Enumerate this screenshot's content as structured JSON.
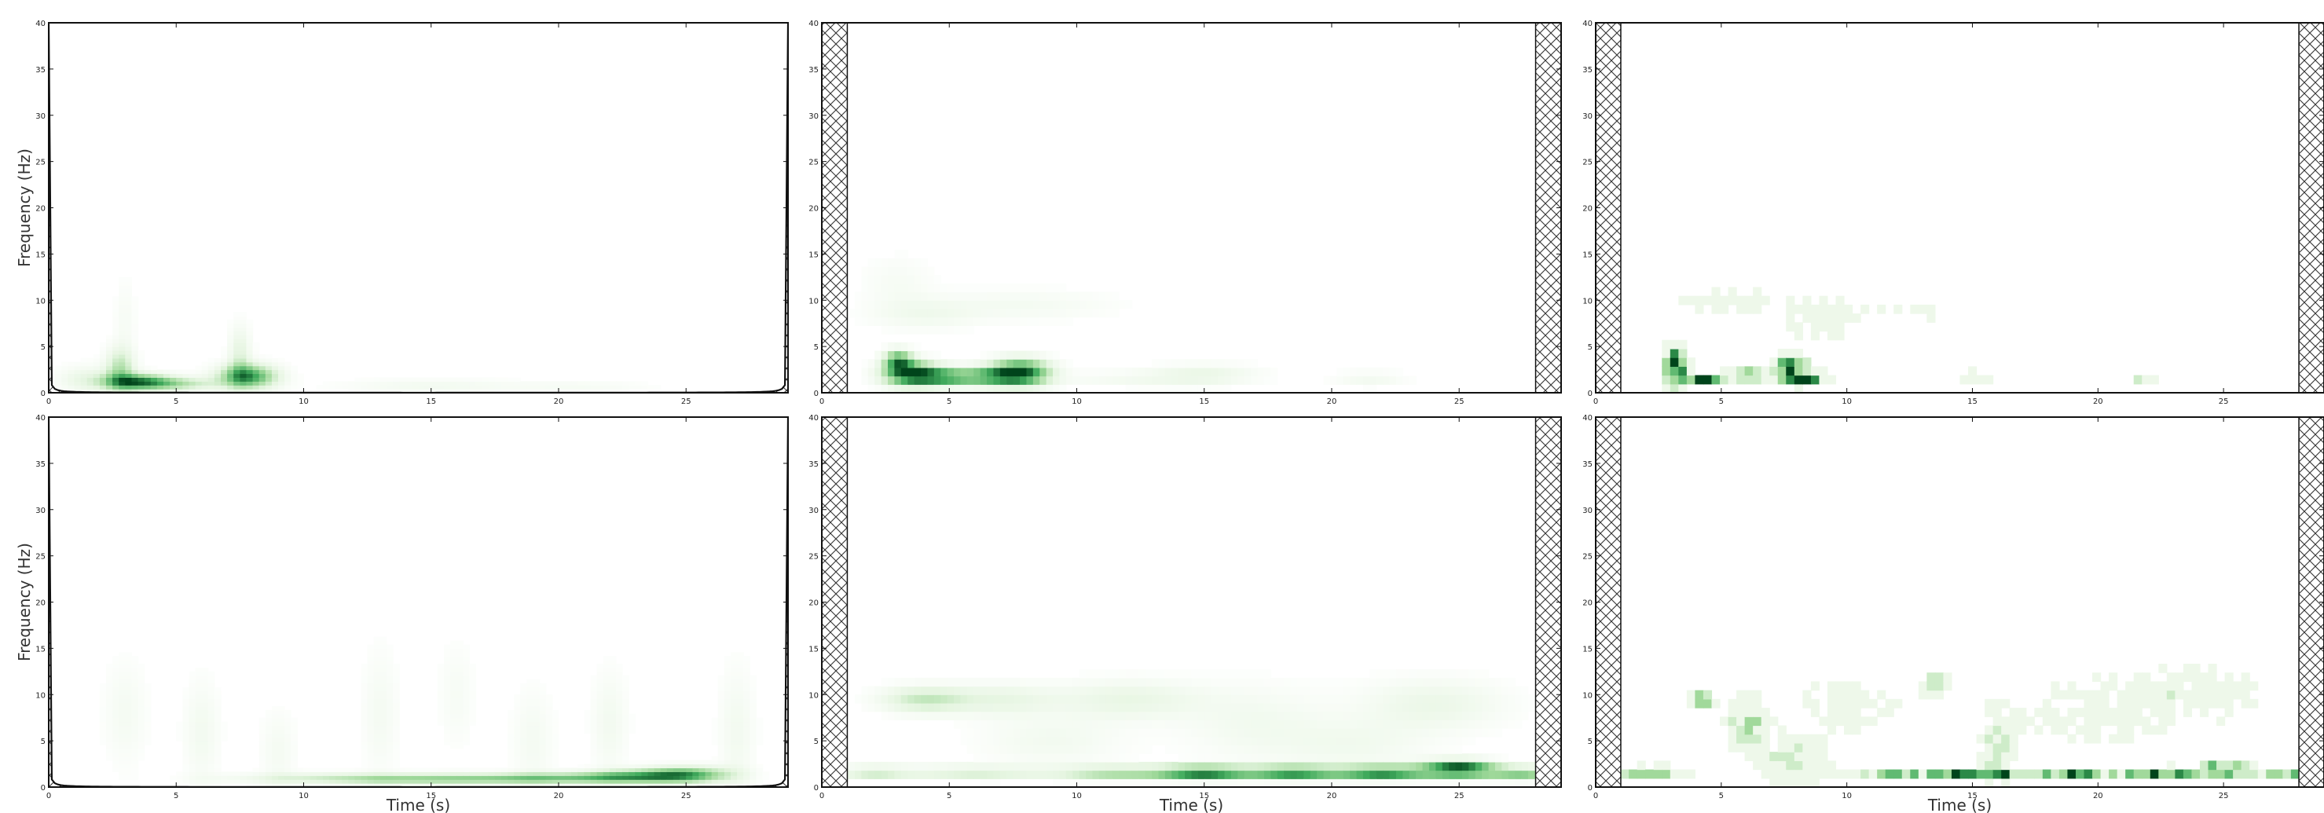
{
  "figure": {
    "colormap": [
      "#ffffff",
      "#e5f5e0",
      "#a1d99b",
      "#41ab5d",
      "#00441b"
    ],
    "hatch_color": "#333333",
    "x_tick_values": [
      0,
      5,
      10,
      15,
      20,
      25
    ],
    "y_tick_values": [
      0,
      5,
      10,
      15,
      20,
      25,
      30,
      35,
      40
    ],
    "xlim": [
      0,
      29
    ],
    "ylim": [
      0,
      40
    ]
  },
  "chart_data": [
    {
      "type": "heatmap",
      "method": "cwt",
      "row": 0,
      "col": 0,
      "ylabel": "Frequency (Hz)",
      "xlabel": "",
      "cone_of_influence": true,
      "edge_hatch_s": 0,
      "blobs": [
        [
          3.5,
          1.2,
          0.9,
          0.6,
          0.85
        ],
        [
          2.8,
          2.6,
          0.4,
          1.6,
          0.4
        ],
        [
          5.2,
          1.0,
          1.0,
          0.5,
          0.35
        ],
        [
          7.8,
          1.8,
          0.8,
          0.9,
          0.8
        ],
        [
          7.5,
          4.0,
          0.3,
          2.2,
          0.25
        ],
        [
          3.0,
          8.0,
          0.3,
          3.0,
          0.08
        ],
        [
          15.0,
          0.8,
          2.5,
          0.5,
          0.12
        ],
        [
          21.0,
          0.7,
          2.0,
          0.4,
          0.08
        ],
        [
          1.5,
          1.5,
          0.8,
          1.0,
          0.2
        ]
      ]
    },
    {
      "type": "heatmap",
      "method": "stft",
      "row": 0,
      "col": 1,
      "ylabel": "",
      "xlabel": "",
      "cone_of_influence": false,
      "edge_hatch_s": 1.0,
      "blobs": [
        [
          3.6,
          2.0,
          0.8,
          0.9,
          1.0
        ],
        [
          3.0,
          3.5,
          0.4,
          0.8,
          0.7
        ],
        [
          5.0,
          1.7,
          0.7,
          0.6,
          0.55
        ],
        [
          7.8,
          2.2,
          0.8,
          1.0,
          0.95
        ],
        [
          6.5,
          1.8,
          0.8,
          0.7,
          0.55
        ],
        [
          4.0,
          8.5,
          1.5,
          1.2,
          0.12
        ],
        [
          8.0,
          9.5,
          2.5,
          1.2,
          0.1
        ],
        [
          15.0,
          2.0,
          1.5,
          0.8,
          0.18
        ],
        [
          21.5,
          1.5,
          1.0,
          0.6,
          0.12
        ],
        [
          12.0,
          1.5,
          2.0,
          0.6,
          0.1
        ],
        [
          3.0,
          12.0,
          1.0,
          2.0,
          0.08
        ]
      ]
    },
    {
      "type": "heatmap",
      "method": "discrete",
      "row": 0,
      "col": 2,
      "ylabel": "",
      "xlabel": "",
      "cone_of_influence": false,
      "edge_hatch_s": 1.0,
      "blobs": [
        [
          3.2,
          3.0,
          0.3,
          1.4,
          1.0
        ],
        [
          4.2,
          1.5,
          0.6,
          0.4,
          0.9
        ],
        [
          6.0,
          1.8,
          0.5,
          0.5,
          0.6
        ],
        [
          7.8,
          2.5,
          0.4,
          1.0,
          1.0
        ],
        [
          8.6,
          1.7,
          0.5,
          0.4,
          0.7
        ],
        [
          15.2,
          1.7,
          0.5,
          0.4,
          0.3
        ],
        [
          21.8,
          1.6,
          0.3,
          0.4,
          0.35
        ],
        [
          5.0,
          10.0,
          1.5,
          1.2,
          0.12
        ],
        [
          9.0,
          8.0,
          1.0,
          2.0,
          0.15
        ],
        [
          13.0,
          9.0,
          2.5,
          1.5,
          0.06
        ],
        [
          18.0,
          6.0,
          3.0,
          2.0,
          0.05
        ]
      ]
    },
    {
      "type": "heatmap",
      "method": "cwt",
      "row": 1,
      "col": 0,
      "ylabel": "Frequency (Hz)",
      "xlabel": "Time (s)",
      "cone_of_influence": true,
      "edge_hatch_s": 0,
      "blobs": [
        [
          15.0,
          0.9,
          3.0,
          0.4,
          0.4
        ],
        [
          20.0,
          1.0,
          2.5,
          0.4,
          0.45
        ],
        [
          25.0,
          1.4,
          1.2,
          0.6,
          0.65
        ],
        [
          23.0,
          1.2,
          1.5,
          0.5,
          0.5
        ],
        [
          11.0,
          1.0,
          3.0,
          0.4,
          0.2
        ],
        [
          6.0,
          6.0,
          0.5,
          4.0,
          0.12
        ],
        [
          13.0,
          8.0,
          0.5,
          5.0,
          0.1
        ],
        [
          19.0,
          5.0,
          0.6,
          4.0,
          0.1
        ],
        [
          22.0,
          7.0,
          0.5,
          4.0,
          0.12
        ],
        [
          27.0,
          6.0,
          0.5,
          5.0,
          0.12
        ],
        [
          3.0,
          8.0,
          0.6,
          4.0,
          0.1
        ],
        [
          9.0,
          4.0,
          0.5,
          3.0,
          0.1
        ],
        [
          16.0,
          10.0,
          0.5,
          4.0,
          0.08
        ]
      ]
    },
    {
      "type": "heatmap",
      "method": "stft",
      "row": 1,
      "col": 1,
      "ylabel": "",
      "xlabel": "Time (s)",
      "cone_of_influence": false,
      "edge_hatch_s": 1.0,
      "blobs": [
        [
          15.0,
          1.6,
          1.3,
          0.5,
          0.9
        ],
        [
          18.5,
          1.6,
          1.2,
          0.5,
          0.8
        ],
        [
          22.0,
          1.6,
          1.3,
          0.5,
          0.85
        ],
        [
          25.0,
          2.0,
          1.0,
          0.6,
          1.0
        ],
        [
          11.5,
          1.6,
          1.5,
          0.5,
          0.45
        ],
        [
          27.5,
          1.5,
          1.0,
          0.5,
          0.55
        ],
        [
          6.0,
          1.6,
          2.0,
          0.5,
          0.3
        ],
        [
          4.0,
          9.5,
          1.2,
          1.0,
          0.35
        ],
        [
          7.0,
          9.5,
          1.5,
          1.2,
          0.2
        ],
        [
          12.0,
          9.5,
          2.0,
          1.5,
          0.2
        ],
        [
          17.0,
          7.0,
          2.0,
          3.0,
          0.12
        ],
        [
          24.0,
          9.0,
          2.0,
          2.0,
          0.18
        ],
        [
          9.0,
          5.0,
          2.0,
          2.0,
          0.12
        ],
        [
          21.0,
          4.5,
          2.0,
          2.0,
          0.12
        ],
        [
          2.0,
          1.6,
          1.0,
          0.5,
          0.3
        ]
      ]
    },
    {
      "type": "heatmap",
      "method": "discrete",
      "row": 1,
      "col": 2,
      "ylabel": "",
      "xlabel": "Time (s)",
      "cone_of_influence": false,
      "edge_hatch_s": 1.0,
      "blobs": [
        [
          15.0,
          1.6,
          1.0,
          0.35,
          0.85
        ],
        [
          18.5,
          1.5,
          1.2,
          0.35,
          0.8
        ],
        [
          22.5,
          1.6,
          1.0,
          0.35,
          0.85
        ],
        [
          25.0,
          2.0,
          0.6,
          0.4,
          1.0
        ],
        [
          12.0,
          1.5,
          1.2,
          0.35,
          0.5
        ],
        [
          27.5,
          1.5,
          1.0,
          0.35,
          0.55
        ],
        [
          2.0,
          1.7,
          1.0,
          0.35,
          0.6
        ],
        [
          4.2,
          9.5,
          0.3,
          0.6,
          0.75
        ],
        [
          13.5,
          11.0,
          0.3,
          0.8,
          0.7
        ],
        [
          16.0,
          4.0,
          0.4,
          3.0,
          0.3
        ],
        [
          6.0,
          7.0,
          0.5,
          2.0,
          0.4
        ],
        [
          10.0,
          9.0,
          1.5,
          2.0,
          0.15
        ],
        [
          20.0,
          8.0,
          2.5,
          3.0,
          0.12
        ],
        [
          24.0,
          10.0,
          2.0,
          2.0,
          0.15
        ],
        [
          8.0,
          3.0,
          1.0,
          2.0,
          0.25
        ]
      ]
    }
  ]
}
